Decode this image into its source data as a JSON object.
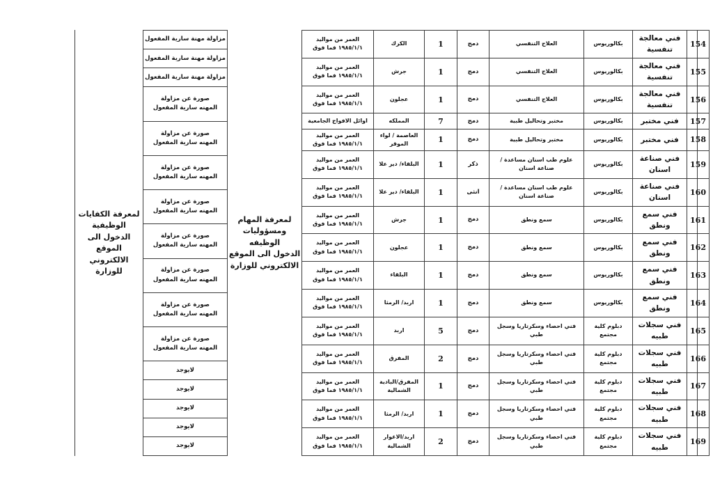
{
  "notes": {
    "competencies_note": "لمعرفة الكفايات الوظيفية\nالدخول الى الموقع\nالالكتروني للوزارة",
    "duties_note": "لمعرفة المهام ومسؤوليات\nالوظيفه\nالدخول الى الموقع\nالالكتروني للوزارة"
  },
  "docs_column": [
    "مزاولة مهنة سارية المفعول",
    "مزاولة مهنة سارية المفعول",
    "مزاولة مهنة سارية المفعول",
    "صورة عن مزاولة\nالمهنه سارية المفعول",
    "صورة عن مزاولة\nالمهنه سارية المفعول",
    "صورة عن مزاولة\nالمهنه سارية المفعول",
    "صورة عن مزاولة\nالمهنه سارية المفعول",
    "صورة عن مزاولة\nالمهنه سارية المفعول",
    "صورة عن مزاولة\nالمهنه سارية المفعول",
    "صورة عن مزاولة\nالمهنه سارية المفعول",
    "صورة عن مزاولة\nالمهنه سارية المفعول",
    "لايوجد",
    "لايوجد",
    "لايوجد",
    "لايوجد",
    "لايوجد"
  ],
  "table": {
    "column_keys": [
      "no",
      "title",
      "qualification",
      "specialization",
      "gender",
      "count",
      "location",
      "age"
    ],
    "rows": [
      {
        "no": "154",
        "title": "فني معالجة تنفسية",
        "qualification": "بكالوريوس",
        "specialization": "العلاج التنفسي",
        "gender": "دمج",
        "count": "1",
        "location": "الكرك",
        "age": "العمر من مواليد\n١٩٨٥/١/١ فما فوق"
      },
      {
        "no": "155",
        "title": "فني معالجة تنفسية",
        "qualification": "بكالوريوس",
        "specialization": "العلاج التنفسي",
        "gender": "دمج",
        "count": "1",
        "location": "جرش",
        "age": "العمر من مواليد\n١٩٨٥/١/١ فما فوق"
      },
      {
        "no": "156",
        "title": "فني معالجة تنفسية",
        "qualification": "بكالوريوس",
        "specialization": "العلاج التنفسي",
        "gender": "دمج",
        "count": "1",
        "location": "عجلون",
        "age": "العمر من مواليد\n١٩٨٥/١/١ فما فوق"
      },
      {
        "no": "157",
        "title": "فني مختبر",
        "qualification": "بكالوريوس",
        "specialization": "مختبر وتحاليل طبية",
        "gender": "دمج",
        "count": "7",
        "location": "المملكه",
        "age": "اوائل الافواج الجامعية"
      },
      {
        "no": "158",
        "title": "فني مختبر",
        "qualification": "بكالوريوس",
        "specialization": "مختبر وتحاليل طبية",
        "gender": "دمج",
        "count": "1",
        "location": "العاصمة / لواء الموقر",
        "age": "العمر من مواليد\n١٩٨٥/١/١ فما فوق"
      },
      {
        "no": "159",
        "title": "فني صناعة اسنان",
        "qualification": "بكالوريوس",
        "specialization": "علوم طب اسنان مساعدة / صناعة اسنان",
        "gender": "ذكر",
        "count": "1",
        "location": "البلقاء/ دير علا",
        "age": "العمر من مواليد\n١٩٨٥/١/١ فما فوق"
      },
      {
        "no": "160",
        "title": "فني صناعة اسنان",
        "qualification": "بكالوريوس",
        "specialization": "علوم طب اسنان مساعدة / صناعة اسنان",
        "gender": "انثى",
        "count": "1",
        "location": "البلقاء/ دير علا",
        "age": "العمر من مواليد\n١٩٨٥/١/١ فما فوق"
      },
      {
        "no": "161",
        "title": "فني سمع ونطق",
        "qualification": "بكالوريوس",
        "specialization": "سمع ونطق",
        "gender": "دمج",
        "count": "1",
        "location": "جرش",
        "age": "العمر من مواليد\n١٩٨٥/١/١ فما فوق"
      },
      {
        "no": "162",
        "title": "فني سمع ونطق",
        "qualification": "بكالوريوس",
        "specialization": "سمع ونطق",
        "gender": "دمج",
        "count": "1",
        "location": "عجلون",
        "age": "العمر من مواليد\n١٩٨٥/١/١ فما فوق"
      },
      {
        "no": "163",
        "title": "فني سمع ونطق",
        "qualification": "بكالوريوس",
        "specialization": "سمع ونطق",
        "gender": "دمج",
        "count": "1",
        "location": "البلقاء",
        "age": "العمر من مواليد\n١٩٨٥/١/١ فما فوق"
      },
      {
        "no": "164",
        "title": "فني سمع ونطق",
        "qualification": "بكالوريوس",
        "specialization": "سمع ونطق",
        "gender": "دمج",
        "count": "1",
        "location": "اربد/ الرمثا",
        "age": "العمر من مواليد\n١٩٨٥/١/١ فما فوق"
      },
      {
        "no": "165",
        "title": "فني سجلات طبيه",
        "qualification": "دبلوم كلية مجتمع",
        "specialization": "فني احصاء وسكرتاريا وسجل طبي",
        "gender": "دمج",
        "count": "5",
        "location": "اربد",
        "age": "العمر من مواليد\n١٩٨٥/١/١ فما فوق"
      },
      {
        "no": "166",
        "title": "فني سجلات طبيه",
        "qualification": "دبلوم كلية مجتمع",
        "specialization": "فني احصاء وسكرتاريا وسجل طبي",
        "gender": "دمج",
        "count": "2",
        "location": "المفرق",
        "age": "العمر من مواليد\n١٩٨٥/١/١ فما فوق"
      },
      {
        "no": "167",
        "title": "فني سجلات طبيه",
        "qualification": "دبلوم كلية مجتمع",
        "specialization": "فني احصاء وسكرتاريا وسجل طبي",
        "gender": "دمج",
        "count": "1",
        "location": "المفرق/البادية الشمالية",
        "age": "العمر من مواليد\n١٩٨٥/١/١ فما فوق"
      },
      {
        "no": "168",
        "title": "فني سجلات طبيه",
        "qualification": "دبلوم كلية مجتمع",
        "specialization": "فني احصاء وسكرتاريا وسجل طبي",
        "gender": "دمج",
        "count": "1",
        "location": "اربد/ الرمثا",
        "age": "العمر من مواليد\n١٩٨٥/١/١ فما فوق"
      },
      {
        "no": "169",
        "title": "فني سجلات طبيه",
        "qualification": "دبلوم كلية مجتمع",
        "specialization": "فني احصاء وسكرتاريا وسجل طبي",
        "gender": "دمج",
        "count": "2",
        "location": "اربد/الاغوار الشمالية",
        "age": "العمر من مواليد\n١٩٨٥/١/١ فما فوق"
      }
    ]
  }
}
